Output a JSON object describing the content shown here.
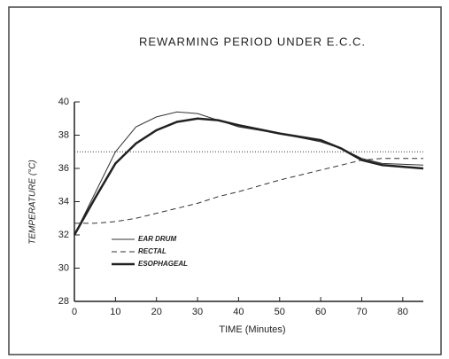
{
  "chart_data": {
    "type": "line",
    "title": "REWARMING PERIOD UNDER E.C.C.",
    "x_label": "TIME (Minutes)",
    "y_label": "TEMPERATURE (°C)",
    "xlim": [
      0,
      85
    ],
    "ylim": [
      28,
      40
    ],
    "xticks": [
      0,
      10,
      20,
      30,
      40,
      50,
      60,
      70,
      80
    ],
    "yticks": [
      28,
      30,
      32,
      34,
      36,
      38,
      40
    ],
    "reference_line": 37,
    "x": [
      0,
      5,
      10,
      15,
      20,
      25,
      30,
      35,
      40,
      50,
      60,
      65,
      70,
      75,
      85
    ],
    "series": [
      {
        "name": "EAR DRUM",
        "color": "#333",
        "style": "solid",
        "width": 1,
        "values": [
          32,
          34.5,
          37,
          38.5,
          39.1,
          39.4,
          39.3,
          38.9,
          38.5,
          38.1,
          37.6,
          37.2,
          36.6,
          36.3,
          36.2
        ]
      },
      {
        "name": "RECTAL",
        "color": "#333",
        "style": "dashed",
        "width": 1,
        "values": [
          32.7,
          32.7,
          32.8,
          33.0,
          33.3,
          33.6,
          33.9,
          34.3,
          34.6,
          35.3,
          35.9,
          36.2,
          36.5,
          36.6,
          36.6
        ]
      },
      {
        "name": "ESOPHAGEAL",
        "color": "#222",
        "style": "solid",
        "width": 2.5,
        "values": [
          32,
          34.2,
          36.3,
          37.5,
          38.3,
          38.8,
          39.0,
          38.9,
          38.6,
          38.1,
          37.7,
          37.2,
          36.5,
          36.2,
          36.0
        ]
      }
    ]
  }
}
